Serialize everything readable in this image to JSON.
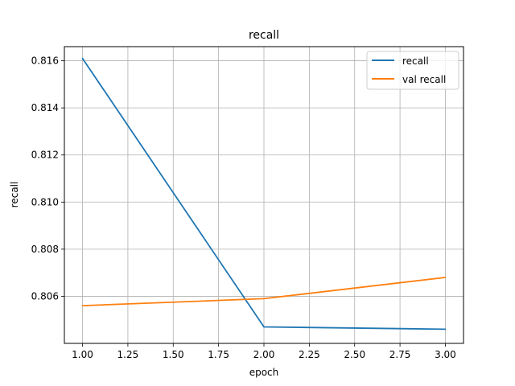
{
  "chart_data": {
    "type": "line",
    "title": "recall",
    "xlabel": "epoch",
    "ylabel": "recall",
    "x": [
      1.0,
      2.0,
      3.0
    ],
    "xlim": [
      0.9,
      3.1
    ],
    "ylim": [
      0.804,
      0.8166
    ],
    "xticks": [
      1.0,
      1.25,
      1.5,
      1.75,
      2.0,
      2.25,
      2.5,
      2.75,
      3.0
    ],
    "xtick_labels": [
      "1.00",
      "1.25",
      "1.50",
      "1.75",
      "2.00",
      "2.25",
      "2.50",
      "2.75",
      "3.00"
    ],
    "yticks": [
      0.806,
      0.808,
      0.81,
      0.812,
      0.814,
      0.816
    ],
    "ytick_labels": [
      "0.806",
      "0.808",
      "0.810",
      "0.812",
      "0.814",
      "0.816"
    ],
    "grid": true,
    "legend_position": "upper right",
    "series": [
      {
        "name": "recall",
        "color": "#1f77b4",
        "values": [
          0.8161,
          0.8047,
          0.8046
        ]
      },
      {
        "name": "val recall",
        "color": "#ff7f0e",
        "values": [
          0.8056,
          0.8059,
          0.8068
        ]
      }
    ]
  }
}
